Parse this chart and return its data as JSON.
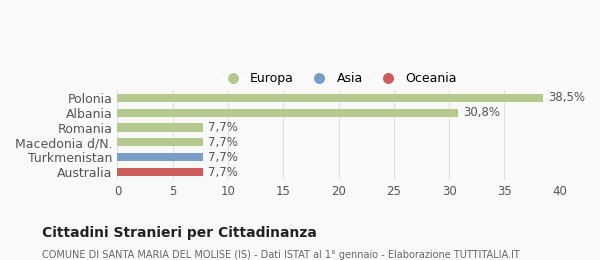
{
  "categories": [
    "Australia",
    "Turkmenistan",
    "Macedonia d/N.",
    "Romania",
    "Albania",
    "Polonia"
  ],
  "values": [
    7.7,
    7.7,
    7.7,
    7.7,
    30.8,
    38.5
  ],
  "colors": [
    "#cd5c5c",
    "#7b9ec7",
    "#b5c98e",
    "#b5c98e",
    "#b5c98e",
    "#b5c98e"
  ],
  "labels": [
    "7,7%",
    "7,7%",
    "7,7%",
    "7,7%",
    "30,8%",
    "38,5%"
  ],
  "legend": [
    {
      "label": "Europa",
      "color": "#b5c98e"
    },
    {
      "label": "Asia",
      "color": "#7b9ec7"
    },
    {
      "label": "Oceania",
      "color": "#cd5c5c"
    }
  ],
  "xlim": [
    0,
    40
  ],
  "xticks": [
    0,
    5,
    10,
    15,
    20,
    25,
    30,
    35,
    40
  ],
  "title": "Cittadini Stranieri per Cittadinanza",
  "subtitle": "COMUNE DI SANTA MARIA DEL MOLISE (IS) - Dati ISTAT al 1° gennaio - Elaborazione TUTTITALIA.IT",
  "bg_color": "#f9f9f9",
  "bar_height": 0.55
}
